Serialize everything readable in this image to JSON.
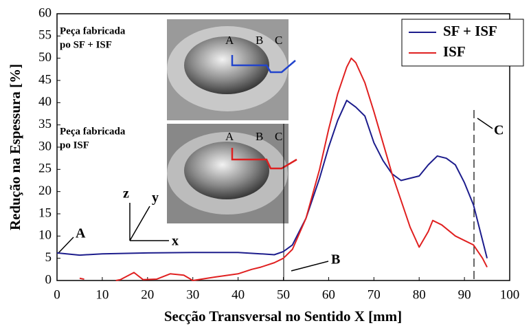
{
  "chart_data": {
    "type": "line",
    "xlabel": "Secção Transversal no Sentido X [mm]",
    "ylabel": "Redução na Espessura [%]",
    "xlim": [
      0,
      100
    ],
    "xticks": [
      0,
      10,
      20,
      30,
      40,
      50,
      60,
      70,
      80,
      90,
      100
    ],
    "ylim": [
      0,
      60
    ],
    "yticks": [
      0,
      5,
      10,
      15,
      20,
      25,
      30,
      35,
      40,
      45,
      50,
      55,
      60
    ],
    "legend": "upper right",
    "series": [
      {
        "name": "SF + ISF",
        "color": "#1c1c8c",
        "x": [
          0,
          5,
          10,
          20,
          30,
          40,
          45,
          48,
          50,
          52,
          55,
          58,
          60,
          62,
          64,
          66,
          68,
          70,
          72,
          74,
          76,
          78,
          80,
          82,
          84,
          86,
          88,
          90,
          92,
          94,
          95
        ],
        "values": [
          6.2,
          5.7,
          6,
          6.2,
          6.3,
          6.3,
          6,
          5.8,
          6.5,
          8,
          14,
          23,
          30,
          36,
          40.5,
          39,
          37,
          31,
          27,
          24,
          22.5,
          23,
          23.5,
          26,
          28,
          27.5,
          26,
          22,
          17,
          9,
          5
        ]
      },
      {
        "name": "ISF",
        "color": "#e02020",
        "x": [
          5,
          6,
          8,
          13,
          14,
          17,
          19,
          22,
          25,
          28,
          30,
          35,
          40,
          43,
          45,
          48,
          50,
          52,
          55,
          58,
          60,
          62,
          64,
          65,
          66,
          68,
          70,
          72,
          74,
          76,
          78,
          80,
          82,
          83,
          85,
          88,
          90,
          92,
          94,
          95
        ],
        "values": [
          0.5,
          0.3,
          null,
          0,
          0.2,
          1.8,
          0.2,
          0.3,
          1.5,
          1.2,
          0,
          0.8,
          1.5,
          2.5,
          3,
          4,
          5,
          7,
          14,
          25,
          34,
          42,
          48,
          50,
          49,
          44.5,
          38,
          31,
          24,
          18,
          12,
          7.5,
          11,
          13.5,
          12.5,
          10,
          9,
          8,
          5,
          3
        ]
      }
    ],
    "annotations": [
      "A",
      "B",
      "C"
    ],
    "axis_glyph": [
      "z",
      "y",
      "x"
    ],
    "insets": [
      {
        "caption": [
          "Peça fabricada",
          "po SF + ISF"
        ],
        "labels": [
          "A",
          "B",
          "C"
        ]
      },
      {
        "caption": [
          "Peça fabricada",
          "po ISF"
        ],
        "labels": [
          "A",
          "B",
          "C"
        ]
      }
    ]
  }
}
